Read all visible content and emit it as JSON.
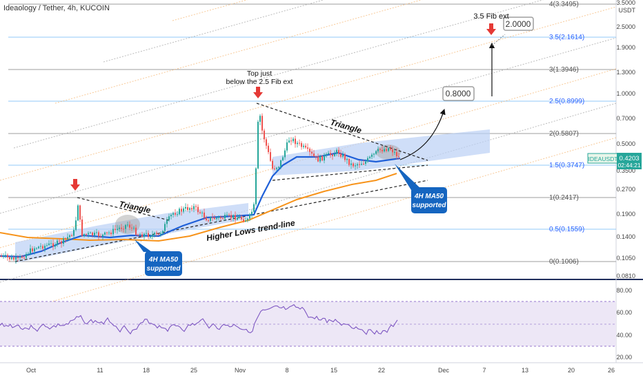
{
  "header": {
    "symbol_title": "Ideaology / Tether, 4h, KUCOIN"
  },
  "price_axis": {
    "currency": "USDT",
    "ticks": [
      "3.5000",
      "2.5000",
      "1.9000",
      "1.3000",
      "1.0000",
      "0.7000",
      "0.5000",
      "0.3500",
      "0.2700",
      "0.1900",
      "0.1400",
      "0.1050",
      "0.0810"
    ],
    "ticker_label": "IDEAUSDT",
    "last_price": "0.4203",
    "countdown": "02:44:21"
  },
  "rsi_axis": {
    "ticks": [
      "80.00",
      "60.00",
      "40.00",
      "20.00"
    ]
  },
  "time_axis": {
    "labels": [
      "Oct",
      "11",
      "18",
      "25",
      "Nov",
      "8",
      "15",
      "22",
      "Dec",
      "7",
      "13",
      "20",
      "26"
    ]
  },
  "fib_levels": [
    {
      "label": "4(3.3495)",
      "color": "#555555"
    },
    {
      "label": "3.5(2.1614)",
      "color": "#2962ff"
    },
    {
      "label": "3(1.3946)",
      "color": "#555555"
    },
    {
      "label": "2.5(0.8999)",
      "color": "#2962ff"
    },
    {
      "label": "2(0.5807)",
      "color": "#555555"
    },
    {
      "label": "1.5(0.3747)",
      "color": "#2962ff"
    },
    {
      "label": "1(0.2417)",
      "color": "#555555"
    },
    {
      "label": "0.5(0.1559)",
      "color": "#2962ff"
    },
    {
      "label": "0(0.1006)",
      "color": "#555555"
    }
  ],
  "annotations": {
    "fib_ext_title": "3.5 Fib ext",
    "target_high": "2.0000",
    "target_mid": "0.8000",
    "top_note_line1": "Top just",
    "top_note_line2": "below the 2.5 Fib ext",
    "triangle_left": "Triangle",
    "triangle_right": "Triangle",
    "trendline": "Higher Lows trend-line",
    "ma_left_line1": "4H MA50",
    "ma_left_line2": "supported",
    "ma_right_line1": "4H MA50",
    "ma_right_line2": "supported"
  },
  "colors": {
    "candle_up": "#26a69a",
    "candle_down": "#ef5350",
    "ma50": "#1e5fd8",
    "ma_long": "#f7931a",
    "rsi_line": "#7e57c2",
    "rsi_band": "#ede7f6",
    "arrow_red": "#e53935",
    "callout_blue": "#1565c0",
    "triangle_fill": "#bbd0f5"
  },
  "chart_data": {
    "type": "candlestick",
    "ma50_label": "4H MA50",
    "price_axis_scale": "log",
    "price_path_approx": [
      {
        "x": "Sep 27",
        "y": 0.105
      },
      {
        "x": "Oct 1",
        "y": 0.112
      },
      {
        "x": "Oct 4",
        "y": 0.13
      },
      {
        "x": "Oct 8",
        "y": 0.14
      },
      {
        "x": "Oct 9",
        "y": 0.24
      },
      {
        "x": "Oct 10",
        "y": 0.15
      },
      {
        "x": "Oct 14",
        "y": 0.16
      },
      {
        "x": "Oct 18",
        "y": 0.16
      },
      {
        "x": "Oct 22",
        "y": 0.2
      },
      {
        "x": "Oct 25",
        "y": 0.21
      },
      {
        "x": "Oct 29",
        "y": 0.18
      },
      {
        "x": "Nov 1",
        "y": 0.19
      },
      {
        "x": "Nov 2",
        "y": 0.3
      },
      {
        "x": "Nov 3",
        "y": 0.82
      },
      {
        "x": "Nov 4",
        "y": 0.55
      },
      {
        "x": "Nov 6",
        "y": 0.35
      },
      {
        "x": "Nov 8",
        "y": 0.55
      },
      {
        "x": "Nov 11",
        "y": 0.45
      },
      {
        "x": "Nov 15",
        "y": 0.42
      },
      {
        "x": "Nov 18",
        "y": 0.37
      },
      {
        "x": "Nov 22",
        "y": 0.45
      },
      {
        "x": "Nov 24",
        "y": 0.4203
      }
    ],
    "rsi_range": [
      20,
      80
    ],
    "rsi_band": [
      30,
      70
    ]
  }
}
